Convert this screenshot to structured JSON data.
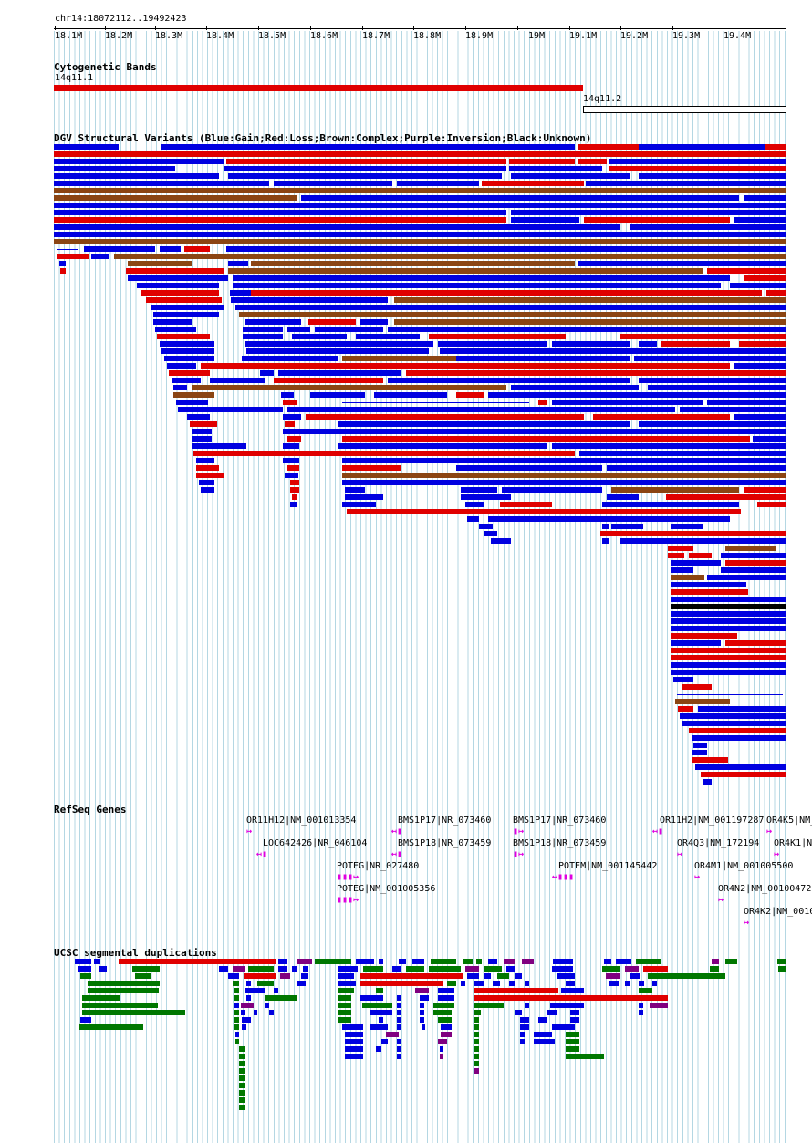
{
  "position": "chr14:18072112..19492423",
  "ruler_ticks": [
    "18.1M",
    "18.2M",
    "18.3M",
    "18.4M",
    "18.5M",
    "18.6M",
    "18.7M",
    "18.8M",
    "18.9M",
    "19M",
    "19.1M",
    "19.2M",
    "19.3M",
    "19.4M"
  ],
  "tracks": {
    "cytoband": {
      "title": "Cytogenetic Bands",
      "band1": "14q11.1",
      "band2": "14q11.2"
    },
    "dgv": {
      "title": "DGV Structural Variants (Blue:Gain;Red:Loss;Brown:Complex;Purple:Inversion;Black:Unknown)"
    },
    "refseq": {
      "title": "RefSeq Genes"
    },
    "segdup": {
      "title": "UCSC segmental duplications"
    }
  },
  "genes": [
    {
      "label": "OR11H12|NM_001013354",
      "glyph": "↦"
    },
    {
      "label": "LOC642426|NR_046104",
      "glyph": "↤▮"
    },
    {
      "label": "BMS1P17|NR_073460",
      "glyph": "↤▮"
    },
    {
      "label": "BMS1P18|NR_073459",
      "glyph": "↤▮"
    },
    {
      "label": "POTEG|NR_027480",
      "glyph": "▮▮▮↦"
    },
    {
      "label": "POTEG|NM_001005356",
      "glyph": "▮▮▮↦"
    },
    {
      "label": "BMS1P17|NR_073460",
      "glyph": "▮↦"
    },
    {
      "label": "BMS1P18|NR_073459",
      "glyph": "▮↦"
    },
    {
      "label": "POTEM|NM_001145442",
      "glyph": "↤▮▮▮"
    },
    {
      "label": "OR11H2|NM_001197287",
      "glyph": "↤▮"
    },
    {
      "label": "OR4Q3|NM_172194",
      "glyph": "↦"
    },
    {
      "label": "OR4M1|NM_001005500",
      "glyph": "↦"
    },
    {
      "label": "OR4N2|NM_00100472",
      "glyph": "↦"
    },
    {
      "label": "OR4K2|NM_0010",
      "glyph": "↦"
    },
    {
      "label": "OR4K5|NM_",
      "glyph": "↦"
    },
    {
      "label": "OR4K1|N",
      "glyph": "↦"
    }
  ],
  "colors": {
    "gain": "#0000e0",
    "loss": "#e00000",
    "complex": "#8b4513",
    "inversion": "#8b008b",
    "unknown": "#000000",
    "segdup_green": "#007700",
    "segdup_blue": "#0000e0",
    "segdup_red": "#e00000",
    "segdup_purple": "#800080",
    "gene": "#e000e0"
  }
}
